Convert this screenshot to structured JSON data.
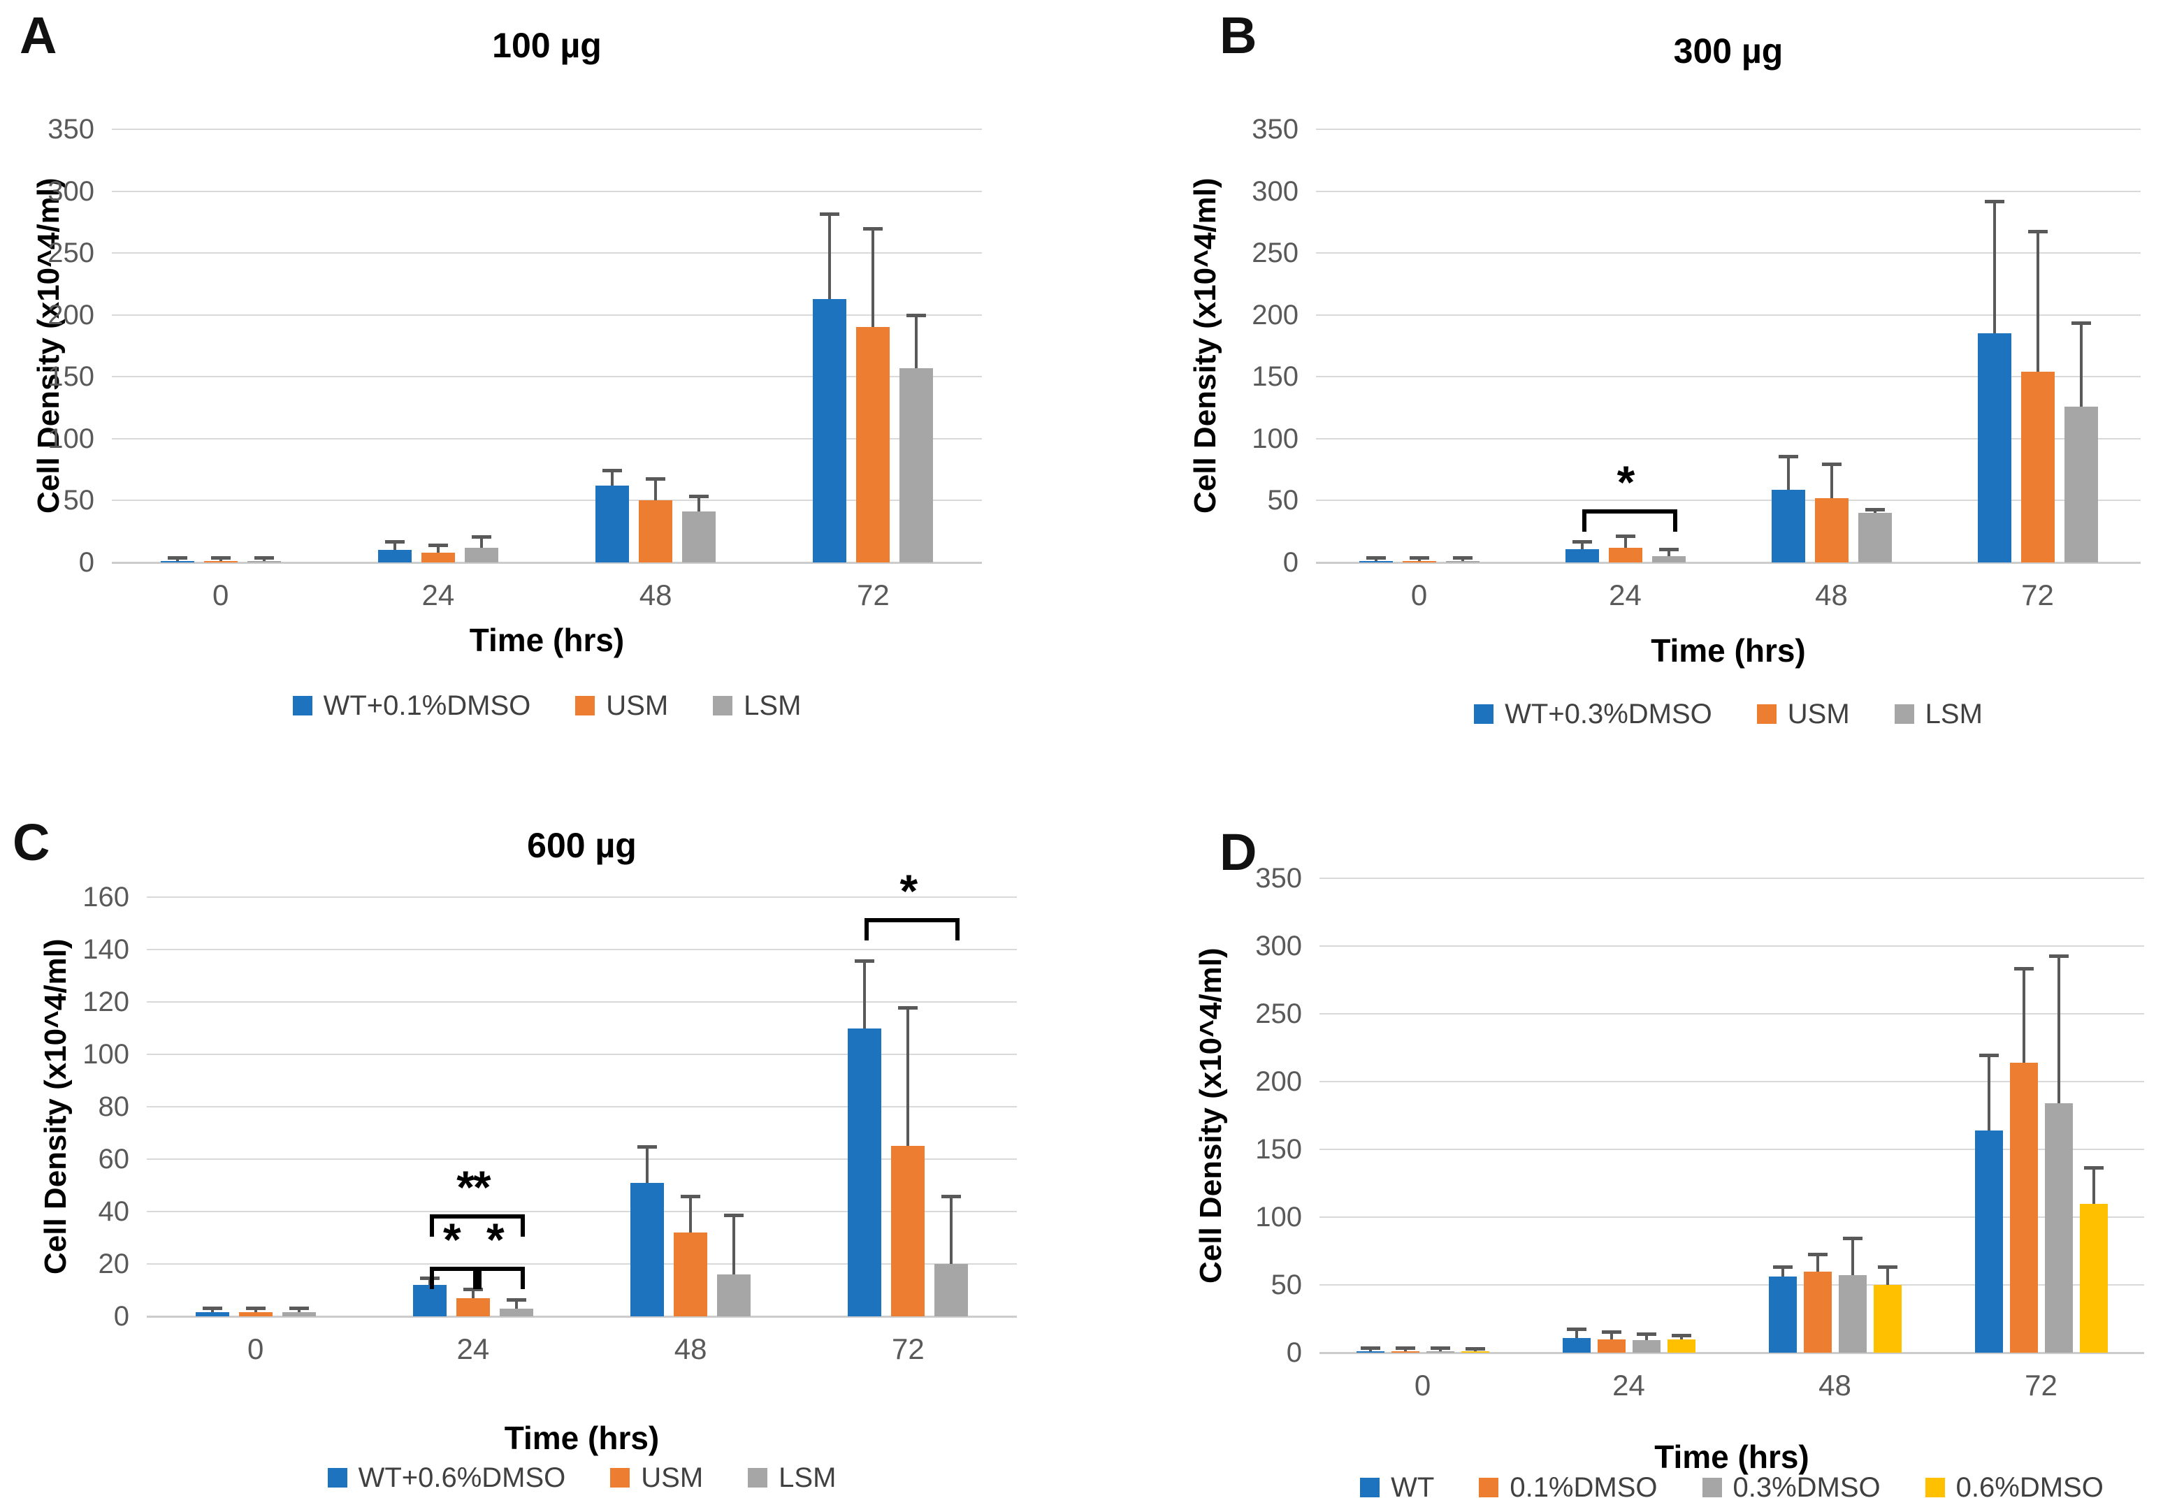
{
  "palette": {
    "blue": "#1e73be",
    "orange": "#ed7d31",
    "gray": "#a6a6a6",
    "yellow": "#ffc000",
    "error_bar": "#595959",
    "gridline": "#d9d9d9"
  },
  "chart_data": [
    {
      "type": "bar",
      "panel_letter": "A",
      "title": "100 µg",
      "xlabel": "Time (hrs)",
      "ylabel": "Cell Density (x10^4/ml)",
      "ylim": [
        0,
        350
      ],
      "ystep": 50,
      "grid": true,
      "legend_position": "bottom",
      "categories": [
        "0",
        "24",
        "48",
        "72"
      ],
      "series": [
        {
          "name": "WT+0.1%DMSO",
          "color": "blue",
          "values": [
            1,
            10,
            62,
            213
          ],
          "errors_plus": [
            1,
            5,
            11,
            67
          ]
        },
        {
          "name": "USM",
          "color": "orange",
          "values": [
            1,
            8,
            50,
            190
          ],
          "errors_plus": [
            1,
            4.5,
            16,
            78
          ]
        },
        {
          "name": "LSM",
          "color": "gray",
          "values": [
            1,
            12,
            41,
            157
          ],
          "errors_plus": [
            1,
            7,
            11,
            41
          ]
        }
      ],
      "significance": []
    },
    {
      "type": "bar",
      "panel_letter": "B",
      "title": "300 µg",
      "xlabel": "Time (hrs)",
      "ylabel": "Cell Density (x10^4/ml)",
      "ylim": [
        0,
        350
      ],
      "ystep": 50,
      "grid": true,
      "legend_position": "bottom",
      "categories": [
        "0",
        "24",
        "48",
        "72"
      ],
      "series": [
        {
          "name": "WT+0.3%DMSO",
          "color": "blue",
          "values": [
            1,
            11,
            59,
            185
          ],
          "errors_plus": [
            1,
            4,
            25,
            105
          ]
        },
        {
          "name": "USM",
          "color": "orange",
          "values": [
            1,
            12,
            52,
            154
          ],
          "errors_plus": [
            1,
            8,
            26,
            112
          ]
        },
        {
          "name": "LSM",
          "color": "gray",
          "values": [
            1,
            5,
            40,
            126
          ],
          "errors_plus": [
            1,
            4,
            1.5,
            66
          ]
        }
      ],
      "significance": [
        {
          "group": 1,
          "from_series": 0,
          "to_series": 2,
          "level": 43,
          "label": "*"
        }
      ]
    },
    {
      "type": "bar",
      "panel_letter": "C",
      "title": "600 µg",
      "xlabel": "Time (hrs)",
      "ylabel": "Cell Density (x10^4/ml)",
      "ylim": [
        0,
        160
      ],
      "ystep": 20,
      "grid": true,
      "legend_position": "bottom",
      "categories": [
        "0",
        "24",
        "48",
        "72"
      ],
      "series": [
        {
          "name": "WT+0.6%DMSO",
          "color": "blue",
          "values": [
            1.5,
            12,
            51,
            110
          ],
          "errors_plus": [
            1,
            2,
            13,
            25
          ]
        },
        {
          "name": "USM",
          "color": "orange",
          "values": [
            1.5,
            7,
            32,
            65
          ],
          "errors_plus": [
            1,
            2.5,
            13,
            52
          ]
        },
        {
          "name": "LSM",
          "color": "gray",
          "values": [
            1.5,
            3,
            16,
            20
          ],
          "errors_plus": [
            1,
            2.5,
            22,
            25
          ]
        }
      ],
      "significance": [
        {
          "group": 1,
          "from_series": 0,
          "to_series": 1,
          "level": 19,
          "label": "*"
        },
        {
          "group": 1,
          "from_series": 1,
          "to_series": 2,
          "level": 19,
          "label": "*"
        },
        {
          "group": 1,
          "from_series": 0,
          "to_series": 2,
          "level": 39,
          "label": "**"
        },
        {
          "group": 3,
          "from_series": 0,
          "to_series": 2,
          "level": 152,
          "label": "*"
        }
      ]
    },
    {
      "type": "bar",
      "panel_letter": "D",
      "title": "",
      "xlabel": "Time (hrs)",
      "ylabel": "Cell Density (x10^4/ml)",
      "ylim": [
        0,
        350
      ],
      "ystep": 50,
      "grid": true,
      "legend_position": "bottom",
      "categories": [
        "0",
        "24",
        "48",
        "72"
      ],
      "series": [
        {
          "name": "WT",
          "color": "blue",
          "values": [
            1,
            11,
            56,
            164
          ],
          "errors_plus": [
            1,
            5,
            6,
            54
          ]
        },
        {
          "name": "0.1%DMSO",
          "color": "orange",
          "values": [
            1,
            10,
            60,
            214
          ],
          "errors_plus": [
            1,
            4,
            11,
            68
          ]
        },
        {
          "name": "0.3%DMSO",
          "color": "gray",
          "values": [
            1,
            9.5,
            57,
            184
          ],
          "errors_plus": [
            1,
            3,
            26,
            107
          ]
        },
        {
          "name": "0.6%DMSO",
          "color": "yellow",
          "values": [
            1,
            10,
            50,
            110
          ],
          "errors_plus": [
            0.5,
            1.5,
            12,
            25
          ]
        }
      ],
      "significance": []
    }
  ]
}
